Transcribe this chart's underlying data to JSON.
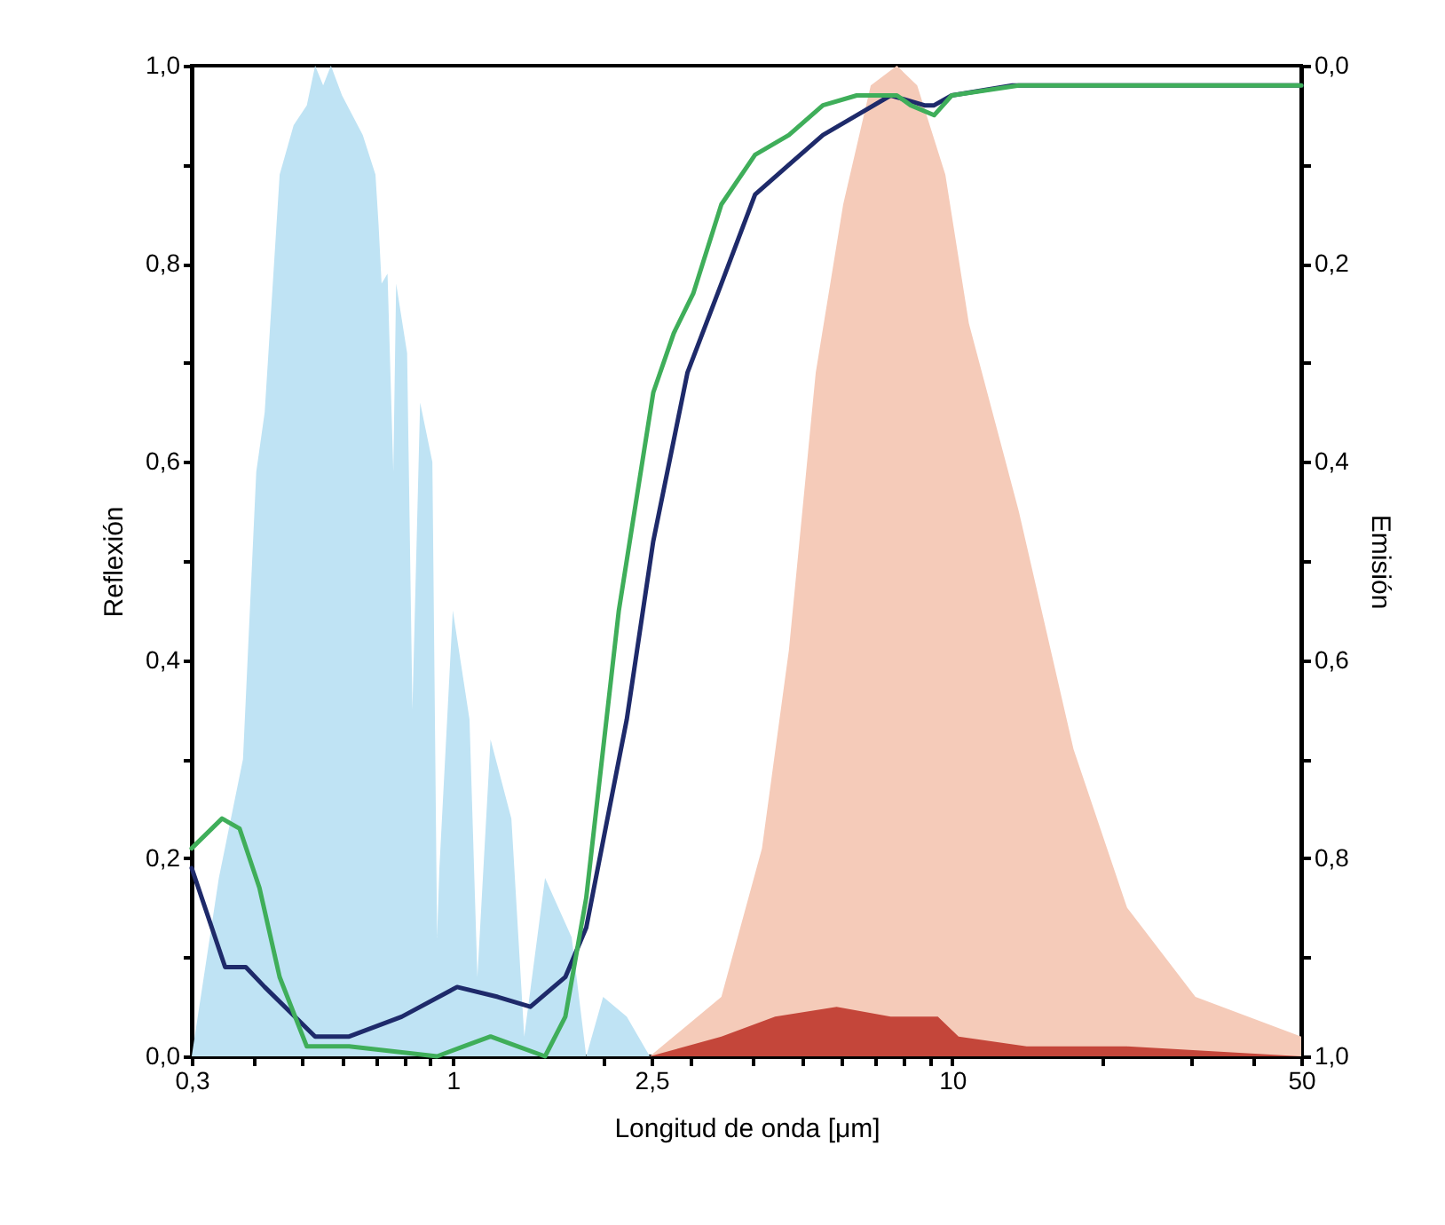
{
  "chart_data": {
    "type": "line",
    "xlabel": "Longitud de onda [μm]",
    "ylabel": "Reflexión",
    "y2label": "Emisión",
    "log": "x",
    "xlim": [
      0.3,
      50
    ],
    "xticks": [
      {
        "value": 0.3,
        "label": "0,3"
      },
      {
        "value": 0.4,
        "label": null
      },
      {
        "value": 0.5,
        "label": null
      },
      {
        "value": 0.6,
        "label": null
      },
      {
        "value": 0.7,
        "label": null
      },
      {
        "value": 0.8,
        "label": null
      },
      {
        "value": 0.9,
        "label": null
      },
      1,
      {
        "value": 2,
        "label": null
      },
      {
        "value": 2.5,
        "label": "2,5"
      },
      {
        "value": 3,
        "label": null
      },
      {
        "value": 4,
        "label": null
      },
      {
        "value": 5,
        "label": null
      },
      {
        "value": 6,
        "label": null
      },
      {
        "value": 7,
        "label": null
      },
      {
        "value": 8,
        "label": null
      },
      {
        "value": 9,
        "label": null
      },
      10,
      {
        "value": 20,
        "label": null
      },
      {
        "value": 30,
        "label": null
      },
      {
        "value": 40,
        "label": null
      },
      50
    ],
    "ylim": [
      0,
      1
    ],
    "yticks": [
      {
        "value": 0,
        "label": "0,0"
      },
      {
        "value": 0.1,
        "label": null
      },
      {
        "value": 0.2,
        "label": "0,2"
      },
      {
        "value": 0.3,
        "label": null
      },
      {
        "value": 0.4,
        "label": "0,4"
      },
      {
        "value": 0.5,
        "label": null
      },
      {
        "value": 0.6,
        "label": "0,6"
      },
      {
        "value": 0.7,
        "label": null
      },
      {
        "value": 0.8,
        "label": "0,8"
      },
      {
        "value": 0.9,
        "label": null
      },
      {
        "value": 1,
        "label": "1,0"
      }
    ],
    "y2lim": [
      1,
      0
    ],
    "y2ticks": [
      {
        "value": 0,
        "label": "0,0"
      },
      {
        "value": 0.1,
        "label": null
      },
      {
        "value": 0.2,
        "label": "0,2"
      },
      {
        "value": 0.3,
        "label": null
      },
      {
        "value": 0.4,
        "label": "0,4"
      },
      {
        "value": 0.5,
        "label": null
      },
      {
        "value": 0.6,
        "label": "0,6"
      },
      {
        "value": 0.7,
        "label": null
      },
      {
        "value": 0.8,
        "label": "0,8"
      },
      {
        "value": 0.9,
        "label": null
      },
      {
        "value": 1,
        "label": "1,0"
      }
    ],
    "series": [
      {
        "type": "area",
        "color": "#bfe3f4",
        "x": [
          0.3,
          0.34,
          0.38,
          0.404,
          0.42,
          0.45,
          0.48,
          0.51,
          0.53,
          0.55,
          0.57,
          0.6,
          0.66,
          0.7,
          0.71,
          0.72,
          0.74,
          0.76,
          0.77,
          0.81,
          0.83,
          0.86,
          0.91,
          0.93,
          0.94,
          1.0,
          1.08,
          1.12,
          1.19,
          1.31,
          1.39,
          1.53,
          1.73,
          1.85,
          2.0,
          2.23,
          2.48
        ],
        "values": [
          0,
          0.18,
          0.3,
          0.59,
          0.65,
          0.89,
          0.94,
          0.96,
          1.0,
          0.98,
          1.0,
          0.97,
          0.93,
          0.89,
          0.84,
          0.78,
          0.79,
          0.59,
          0.78,
          0.71,
          0.35,
          0.66,
          0.6,
          0.12,
          0.19,
          0.45,
          0.34,
          0.08,
          0.32,
          0.24,
          0.02,
          0.18,
          0.12,
          0,
          0.06,
          0.04,
          0
        ]
      },
      {
        "type": "area",
        "color": "#f5cbb9",
        "x": [
          2.48,
          3.45,
          4.16,
          4.71,
          5.33,
          6.05,
          6.87,
          7.75,
          8.51,
          9.69,
          10.8,
          13.6,
          17.5,
          22.4,
          30.7,
          50
        ],
        "values": [
          0,
          0.06,
          0.21,
          0.41,
          0.69,
          0.86,
          0.98,
          1.0,
          0.98,
          0.89,
          0.74,
          0.55,
          0.31,
          0.15,
          0.06,
          0.02
        ]
      },
      {
        "type": "area",
        "color": "#c4463a",
        "x": [
          2.48,
          3.45,
          4.42,
          5.87,
          7.53,
          9.36,
          10.3,
          14.1,
          22.4,
          50
        ],
        "values": [
          0,
          0.02,
          0.04,
          0.05,
          0.04,
          0.04,
          0.02,
          0.01,
          0.01,
          0
        ]
      },
      {
        "color": "#1e2a6a",
        "x": [
          0.3,
          0.35,
          0.385,
          0.42,
          0.53,
          0.62,
          0.79,
          1.02,
          1.23,
          1.43,
          1.68,
          1.85,
          2.23,
          2.52,
          2.95,
          3.45,
          4.03,
          4.71,
          5.51,
          6.44,
          7.53,
          8.8,
          9.2,
          9.98,
          13.2,
          16.4,
          50
        ],
        "values": [
          0.19,
          0.09,
          0.09,
          0.07,
          0.02,
          0.02,
          0.04,
          0.07,
          0.06,
          0.05,
          0.08,
          0.13,
          0.34,
          0.52,
          0.69,
          0.78,
          0.87,
          0.9,
          0.93,
          0.95,
          0.97,
          0.96,
          0.96,
          0.97,
          0.98,
          0.98,
          0.98
        ]
      },
      {
        "color": "#3fae5a",
        "x": [
          0.3,
          0.345,
          0.374,
          0.41,
          0.45,
          0.51,
          0.62,
          0.93,
          1.05,
          1.19,
          1.35,
          1.53,
          1.68,
          1.85,
          2.15,
          2.52,
          2.77,
          3.03,
          3.45,
          4.03,
          4.71,
          5.51,
          6.44,
          7.75,
          8.26,
          9.2,
          9.98,
          13.6,
          16.4,
          50
        ],
        "values": [
          0.21,
          0.24,
          0.23,
          0.17,
          0.08,
          0.01,
          0.01,
          0,
          0.01,
          0.02,
          0.01,
          0,
          0.04,
          0.16,
          0.45,
          0.67,
          0.73,
          0.77,
          0.86,
          0.91,
          0.93,
          0.96,
          0.97,
          0.97,
          0.96,
          0.95,
          0.97,
          0.98,
          0.98,
          0.98
        ]
      }
    ]
  }
}
